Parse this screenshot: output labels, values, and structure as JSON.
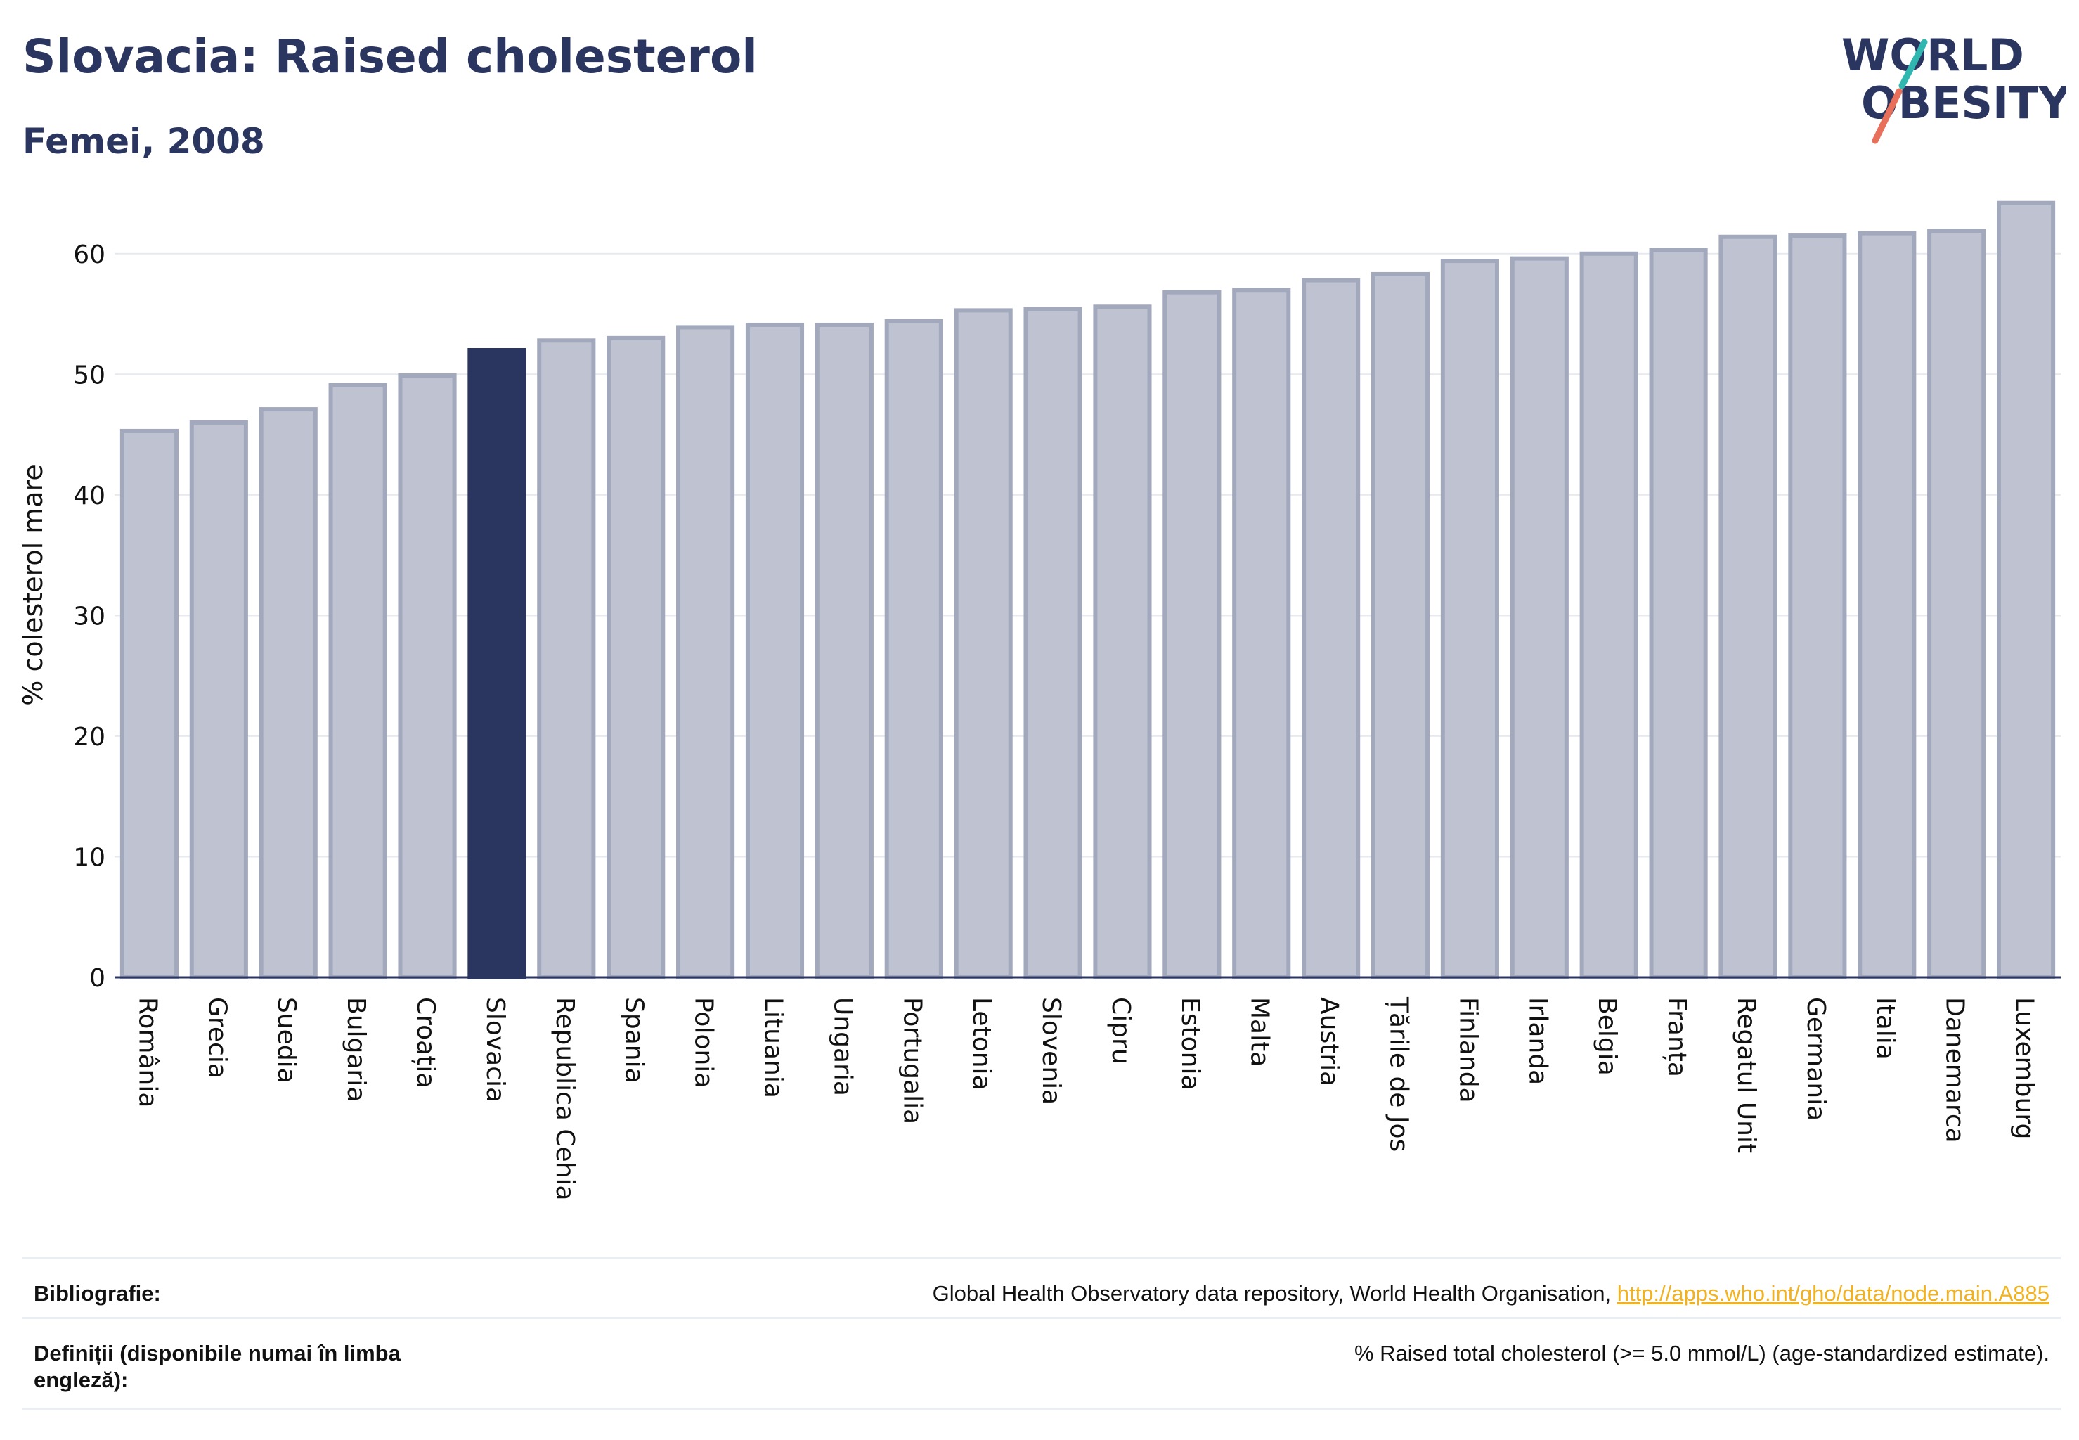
{
  "header": {
    "title": "Slovacia: Raised cholesterol",
    "subtitle": "Femei, 2008"
  },
  "logo": {
    "line1": "WORLD",
    "line2": "OBESITY",
    "accent_colors": [
      "#2fb7b0",
      "#e8705a"
    ]
  },
  "colors": {
    "bar": "#bfc2d0",
    "bar_border": "#a3a9bd",
    "highlight": "#2b3660",
    "text": "#2b3660",
    "link": "#f2b11f"
  },
  "chart_data": {
    "type": "bar",
    "ylabel": "% colesterol mare",
    "ylim": [
      0,
      65
    ],
    "yticks": [
      0,
      10,
      20,
      30,
      40,
      50,
      60
    ],
    "grid": true,
    "highlight": "Slovacia",
    "categories": [
      "România",
      "Grecia",
      "Suedia",
      "Bulgaria",
      "Croația",
      "Slovacia",
      "Republica Cehia",
      "Spania",
      "Polonia",
      "Lituania",
      "Ungaria",
      "Portugalia",
      "Letonia",
      "Slovenia",
      "Cipru",
      "Estonia",
      "Malta",
      "Austria",
      "Țările de Jos",
      "Finlanda",
      "Irlanda",
      "Belgia",
      "Franța",
      "Regatul Unit",
      "Germania",
      "Italia",
      "Danemarca",
      "Luxemburg"
    ],
    "values": [
      45.3,
      46.0,
      47.1,
      49.1,
      49.9,
      52.0,
      52.8,
      53.0,
      53.9,
      54.1,
      54.1,
      54.4,
      55.3,
      55.4,
      55.6,
      56.8,
      57.0,
      57.8,
      58.3,
      59.4,
      59.6,
      60.0,
      60.3,
      61.4,
      61.5,
      61.7,
      61.9,
      64.2
    ]
  },
  "footer": {
    "bibliography_label": "Bibliografie:",
    "bibliography_text": "Global Health Observatory data repository, World Health Organisation, ",
    "bibliography_link": "http://apps.who.int/gho/data/node.main.A885",
    "definitions_label": "Definiții (disponibile numai în limba engleză):",
    "definitions_text": "% Raised total cholesterol (>= 5.0 mmol/L) (age-standardized estimate)."
  }
}
